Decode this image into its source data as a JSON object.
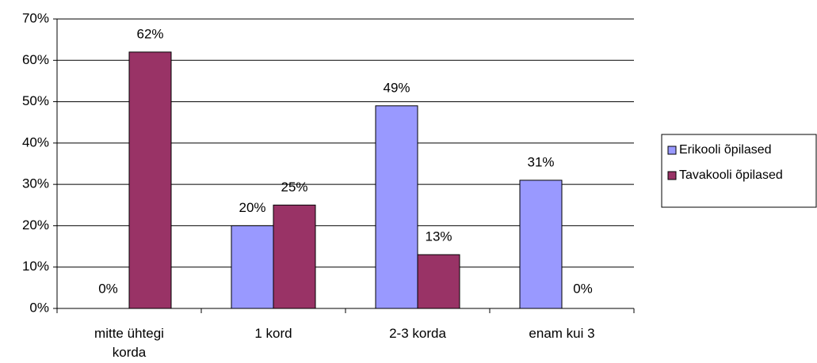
{
  "chart_data": {
    "type": "bar",
    "categories": [
      "mitte ühtegi korda",
      "1 kord",
      "2-3 korda",
      "enam kui 3"
    ],
    "series": [
      {
        "name": "Erikooli õpilased",
        "color": "#9999ff",
        "values": [
          0,
          20,
          49,
          31
        ],
        "value_labels": [
          "0%",
          "20%",
          "49%",
          "31%"
        ]
      },
      {
        "name": "Tavakooli õpilased",
        "color": "#993366",
        "values": [
          62,
          25,
          13,
          0
        ],
        "value_labels": [
          "62%",
          "25%",
          "13%",
          "0%"
        ]
      }
    ],
    "ylim": [
      0,
      70
    ],
    "yticks": [
      {
        "value": 0,
        "label": "0%"
      },
      {
        "value": 10,
        "label": "10%"
      },
      {
        "value": 20,
        "label": "20%"
      },
      {
        "value": 30,
        "label": "30%"
      },
      {
        "value": 40,
        "label": "40%"
      },
      {
        "value": 50,
        "label": "50%"
      },
      {
        "value": 60,
        "label": "60%"
      },
      {
        "value": 70,
        "label": "70%"
      }
    ],
    "grid": true,
    "legend": "right"
  }
}
